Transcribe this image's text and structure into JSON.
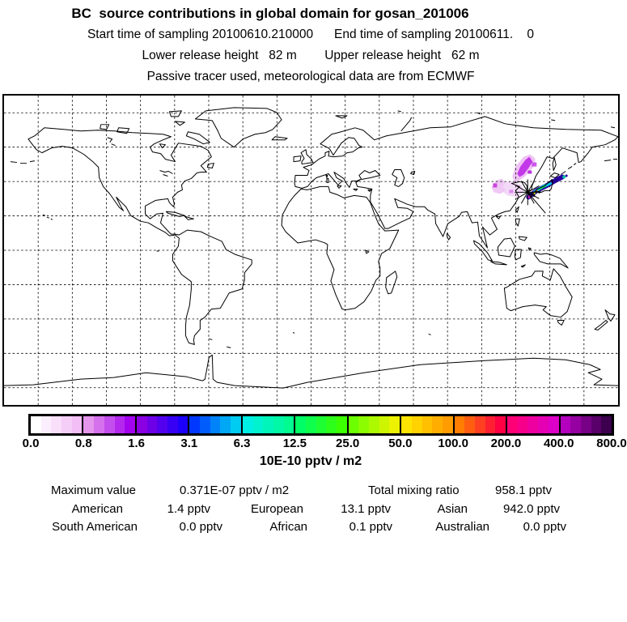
{
  "header": {
    "title": "BC  source contributions in global domain for gosan_201006",
    "sampling_line": "Start time of sampling 20100610.210000      End time of sampling 20100611.    0",
    "release_line": "Lower release height   82 m        Upper release height   62 m",
    "tracer_line": "Passive tracer used, meteorological data are from ECMWF"
  },
  "colorbar": {
    "caption": "10E-10 pptv / m2",
    "steps_per_segment": 5,
    "ticks": [
      "0.0",
      "0.8",
      "1.6",
      "3.1",
      "6.3",
      "12.5",
      "25.0",
      "50.0",
      "100.0",
      "200.0",
      "400.0",
      "800.0"
    ],
    "segments": [
      {
        "from": "#FFFFFF",
        "to": "#F2BEF5"
      },
      {
        "from": "#E596EC",
        "to": "#A303EF"
      },
      {
        "from": "#8A00E2",
        "to": "#1B00FB"
      },
      {
        "from": "#0038FF",
        "to": "#00CCF2"
      },
      {
        "from": "#00EFE4",
        "to": "#00FB91"
      },
      {
        "from": "#00FF66",
        "to": "#3CFF00"
      },
      {
        "from": "#6BFF00",
        "to": "#EDF200"
      },
      {
        "from": "#FFE400",
        "to": "#FF9C00"
      },
      {
        "from": "#FF7D00",
        "to": "#FF0044"
      },
      {
        "from": "#FF0077",
        "to": "#DC00C8"
      },
      {
        "from": "#B400BE",
        "to": "#3C004E"
      }
    ]
  },
  "stats": {
    "max_label": "Maximum value",
    "max_value": "0.371E-07 pptv / m2",
    "total_label": "Total mixing ratio",
    "total_value": "958.1 pptv",
    "regions": [
      {
        "label": "American",
        "value": "1.4 pptv"
      },
      {
        "label": "European",
        "value": "13.1 pptv"
      },
      {
        "label": "Asian",
        "value": "942.0 pptv"
      },
      {
        "label": "South American",
        "value": "0.0 pptv"
      },
      {
        "label": "African",
        "value": "0.1 pptv"
      },
      {
        "label": "Australian",
        "value": "0.0 pptv"
      }
    ]
  },
  "chart_data": {
    "type": "heatmap",
    "title": "BC  source contributions in global domain for gosan_201006",
    "subtitle_lines": [
      "Start time of sampling 20100610.210000      End time of sampling 20100611.    0",
      "Lower release height   82 m        Upper release height   62 m",
      "Passive tracer used, meteorological data are from ECMWF"
    ],
    "units": "10E-10 pptv / m2",
    "levels": [
      0.0,
      0.8,
      1.6,
      3.1,
      6.3,
      12.5,
      25.0,
      50.0,
      100.0,
      200.0,
      400.0,
      800.0
    ],
    "maximum_value": "0.371E-07 pptv / m2",
    "total_mixing_ratio": "958.1 pptv",
    "contributions_pptv": {
      "American": 1.4,
      "European": 13.1,
      "Asian": 942.0,
      "South_American": 0.0,
      "African": 0.1,
      "Australian": 0.0
    },
    "station": {
      "name": "gosan",
      "marker": "asterisk",
      "approx_location": "Jeju Island, Korea (~126E, 33N)"
    },
    "plume": {
      "region": "Northeast Asia: magenta plume over NE China / Yellow Sea and a dark-blue/cyan/green streak along the Sea of Japan coast of Honshu",
      "colors": {
        "pale": "#F3D9F8",
        "pale2": "#EFC2F4",
        "pale3": "#EFC9F4",
        "magenta": "#C238E8",
        "violet_dot": "#CC44DD",
        "violet_mid": "#DD88EE",
        "violet_spot": "#CC55EE",
        "violet_spot2": "#BB33DD",
        "dark_band": "#2800A0",
        "cyan": "#00CCF0",
        "green": "#00DE60",
        "orange": "#FF8800",
        "yellow": "#C8DC00",
        "teal": "#00C8A0",
        "magenta_dot": "#CC22CC"
      }
    },
    "map": {
      "projection": "equirectangular",
      "lon_range": [
        -180,
        180
      ],
      "lat_range": [
        -90,
        90
      ],
      "grid_interval_deg": 20,
      "grid_style": "dashed"
    }
  }
}
